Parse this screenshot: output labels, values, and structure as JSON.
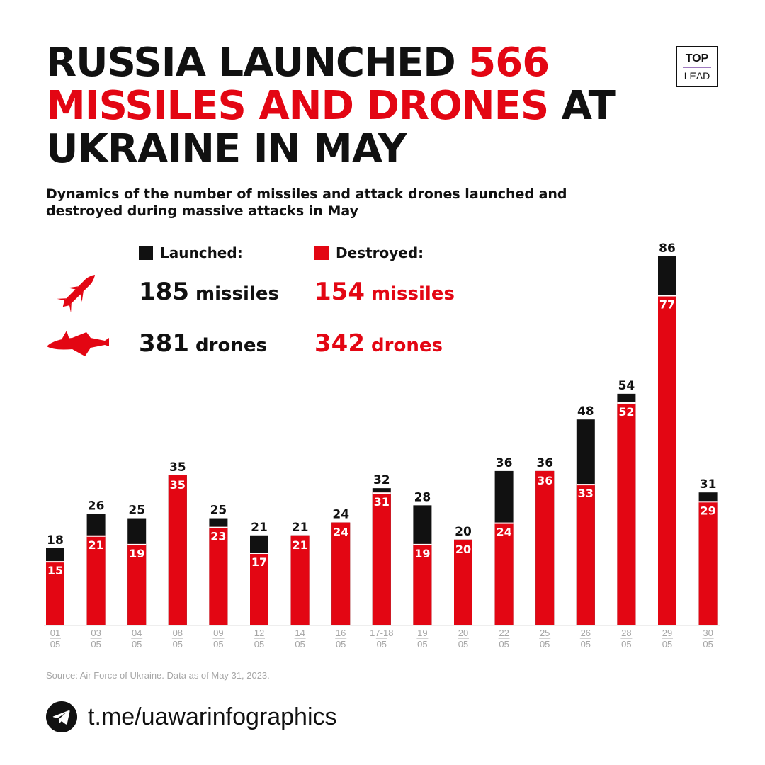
{
  "title": {
    "part1": "RUSSIA LAUNCHED ",
    "highlight": "566 MISSILES AND DRONES",
    "part2": " AT UKRAINE IN MAY"
  },
  "subtitle": "Dynamics of the number of missiles and attack drones launched and destroyed during massive attacks in May",
  "logo": {
    "top": "TOP",
    "bottom": "LEAD"
  },
  "legend": {
    "launched": "Launched:",
    "destroyed": "Destroyed:"
  },
  "stats": {
    "launched_missiles": {
      "num": "185",
      "unit": "missiles"
    },
    "launched_drones": {
      "num": "381",
      "unit": "drones"
    },
    "destroyed_missiles": {
      "num": "154",
      "unit": "missiles"
    },
    "destroyed_drones": {
      "num": "342",
      "unit": "drones"
    }
  },
  "icons": {
    "missile": "missile-icon",
    "drone": "drone-icon",
    "telegram": "telegram-icon"
  },
  "colors": {
    "launched": "#111111",
    "destroyed": "#e30613",
    "axis_label": "#a6a6a6"
  },
  "chart_data": {
    "type": "bar",
    "categories": [
      [
        "01",
        "05"
      ],
      [
        "03",
        "05"
      ],
      [
        "04",
        "05"
      ],
      [
        "08",
        "05"
      ],
      [
        "09",
        "05"
      ],
      [
        "12",
        "05"
      ],
      [
        "14",
        "05"
      ],
      [
        "16",
        "05"
      ],
      [
        "17-18",
        "05"
      ],
      [
        "19",
        "05"
      ],
      [
        "20",
        "05"
      ],
      [
        "22",
        "05"
      ],
      [
        "25",
        "05"
      ],
      [
        "26",
        "05"
      ],
      [
        "28",
        "05"
      ],
      [
        "29",
        "05"
      ],
      [
        "30",
        "05"
      ]
    ],
    "series": [
      {
        "name": "Launched",
        "values": [
          18,
          26,
          25,
          35,
          25,
          21,
          21,
          24,
          32,
          28,
          20,
          36,
          36,
          48,
          54,
          86,
          31
        ]
      },
      {
        "name": "Destroyed",
        "values": [
          15,
          21,
          19,
          35,
          23,
          17,
          21,
          24,
          31,
          19,
          20,
          24,
          36,
          33,
          52,
          77,
          29
        ]
      }
    ],
    "ylim": [
      0,
      86
    ],
    "layout": "overlapping-bars"
  },
  "source": "Source: Air Force of Ukraine. Data as of May 31, 2023.",
  "telegram_link": "t.me/uawarinfographics"
}
